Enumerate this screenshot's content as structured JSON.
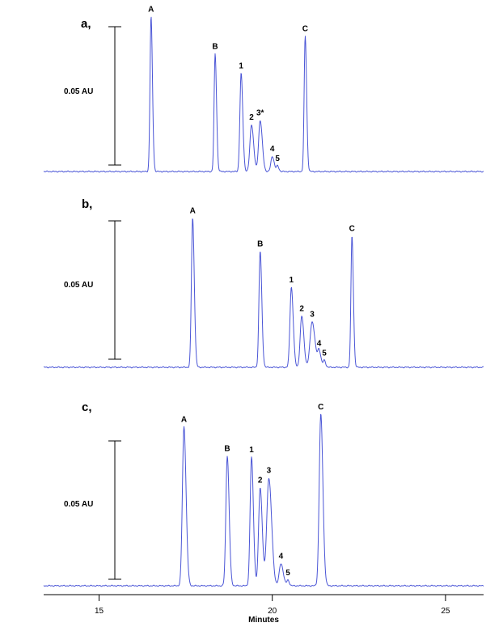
{
  "chart_data": {
    "type": "line",
    "x_axis": {
      "label": "Minutes",
      "range": [
        13.4,
        26.1
      ],
      "ticks": [
        15,
        20,
        25
      ],
      "tick_labels": [
        "15",
        "20",
        "25"
      ]
    },
    "scale_bar_label": "0.05 AU",
    "line_color": "#4a55d6",
    "panels": [
      {
        "label": "a,",
        "peaks": [
          {
            "label": "A",
            "x": 16.5,
            "height": 1.12,
            "width": 0.03
          },
          {
            "label": "B",
            "x": 18.35,
            "height": 0.85,
            "width": 0.03
          },
          {
            "label": "1",
            "x": 19.1,
            "height": 0.71,
            "width": 0.035
          },
          {
            "label": "2",
            "x": 19.4,
            "height": 0.34,
            "width": 0.045
          },
          {
            "label": "3*",
            "x": 19.65,
            "height": 0.37,
            "width": 0.045
          },
          {
            "label": "4",
            "x": 20.0,
            "height": 0.11,
            "width": 0.04
          },
          {
            "label": "5",
            "x": 20.15,
            "height": 0.04,
            "width": 0.03
          },
          {
            "label": "C",
            "x": 20.95,
            "height": 0.98,
            "width": 0.03
          }
        ]
      },
      {
        "label": "b,",
        "peaks": [
          {
            "label": "A",
            "x": 17.7,
            "height": 1.08,
            "width": 0.035
          },
          {
            "label": "B",
            "x": 19.65,
            "height": 0.84,
            "width": 0.035
          },
          {
            "label": "1",
            "x": 20.55,
            "height": 0.58,
            "width": 0.04
          },
          {
            "label": "2",
            "x": 20.85,
            "height": 0.37,
            "width": 0.045
          },
          {
            "label": "3",
            "x": 21.15,
            "height": 0.33,
            "width": 0.06
          },
          {
            "label": "4",
            "x": 21.35,
            "height": 0.12,
            "width": 0.04
          },
          {
            "label": "5",
            "x": 21.5,
            "height": 0.05,
            "width": 0.03
          },
          {
            "label": "C",
            "x": 22.3,
            "height": 0.95,
            "width": 0.03
          }
        ]
      },
      {
        "label": "c,",
        "peaks": [
          {
            "label": "A",
            "x": 17.45,
            "height": 1.15,
            "width": 0.045
          },
          {
            "label": "B",
            "x": 18.7,
            "height": 0.94,
            "width": 0.04
          },
          {
            "label": "1",
            "x": 19.4,
            "height": 0.93,
            "width": 0.04
          },
          {
            "label": "2",
            "x": 19.65,
            "height": 0.71,
            "width": 0.045
          },
          {
            "label": "3",
            "x": 19.9,
            "height": 0.78,
            "width": 0.06
          },
          {
            "label": "4",
            "x": 20.25,
            "height": 0.16,
            "width": 0.05
          },
          {
            "label": "5",
            "x": 20.45,
            "height": 0.04,
            "width": 0.03
          },
          {
            "label": "C",
            "x": 21.4,
            "height": 1.24,
            "width": 0.045
          }
        ]
      }
    ]
  }
}
